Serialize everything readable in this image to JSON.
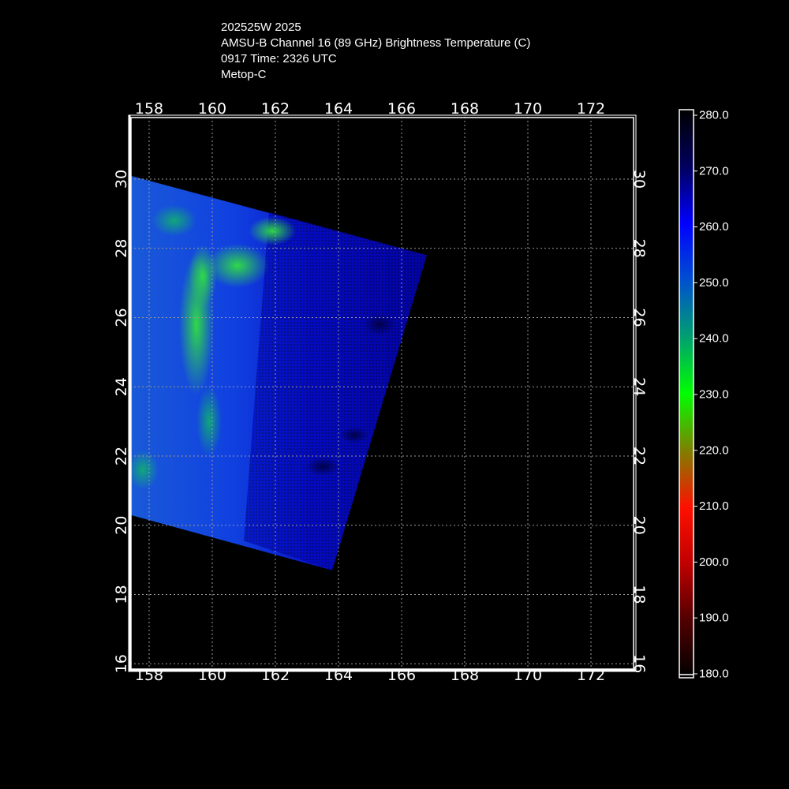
{
  "header": {
    "line1": "202525W 2025",
    "line2": "AMSU-B Channel 16 (89 GHz) Brightness Temperature (C)",
    "line3": "0917 Time: 2326 UTC",
    "line4": "Metop-C"
  },
  "map": {
    "lon_range": [
      157.4,
      173.4
    ],
    "lat_range": [
      15.8,
      31.8
    ],
    "lon_ticks": [
      "158",
      "160",
      "162",
      "164",
      "166",
      "168",
      "170",
      "172"
    ],
    "lat_ticks": [
      "16",
      "18",
      "20",
      "22",
      "24",
      "26",
      "28",
      "30"
    ],
    "grid": true,
    "swath_corners_lonlat": [
      [
        157.4,
        30.1
      ],
      [
        166.8,
        27.8
      ],
      [
        163.8,
        18.7
      ],
      [
        157.4,
        20.3
      ]
    ]
  },
  "colorbar": {
    "labels": [
      "280.0",
      "270.0",
      "260.0",
      "250.0",
      "240.0",
      "230.0",
      "220.0",
      "210.0",
      "200.0",
      "190.0",
      "180.0"
    ],
    "stops": [
      {
        "t": 280,
        "color": "#000000"
      },
      {
        "t": 270,
        "color": "#00005e"
      },
      {
        "t": 260,
        "color": "#0000ff"
      },
      {
        "t": 250,
        "color": "#0050d0"
      },
      {
        "t": 240,
        "color": "#00a070"
      },
      {
        "t": 230,
        "color": "#00ff00"
      },
      {
        "t": 220,
        "color": "#7f8000"
      },
      {
        "t": 210,
        "color": "#ff1000"
      },
      {
        "t": 200,
        "color": "#c00000"
      },
      {
        "t": 190,
        "color": "#500000"
      },
      {
        "t": 180,
        "color": "#000000"
      }
    ]
  },
  "colors": {
    "frame": "#ffffff",
    "grid": "#9a9a9a",
    "background": "#000000"
  }
}
